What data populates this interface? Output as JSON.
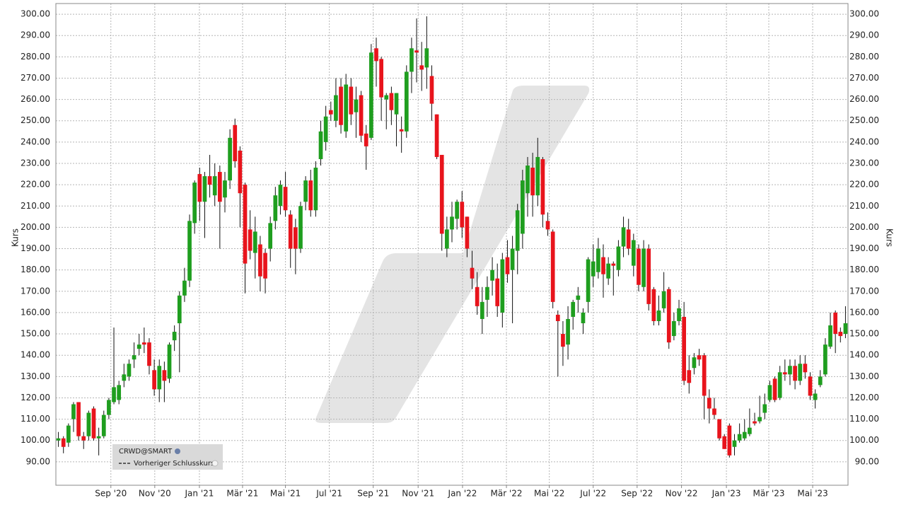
{
  "chart_data": {
    "type": "candlestick",
    "y_label": "Kurs",
    "ylim": [
      79,
      305
    ],
    "yticks": [
      {
        "value": 90,
        "label": "90.00"
      },
      {
        "value": 100,
        "label": "100.00"
      },
      {
        "value": 110,
        "label": "110.00"
      },
      {
        "value": 120,
        "label": "120.00"
      },
      {
        "value": 130,
        "label": "130.00"
      },
      {
        "value": 140,
        "label": "140.00"
      },
      {
        "value": 150,
        "label": "150.00"
      },
      {
        "value": 160,
        "label": "160.00"
      },
      {
        "value": 170,
        "label": "170.00"
      },
      {
        "value": 180,
        "label": "180.00"
      },
      {
        "value": 190,
        "label": "190.00"
      },
      {
        "value": 200,
        "label": "200.00"
      },
      {
        "value": 210,
        "label": "210.00"
      },
      {
        "value": 220,
        "label": "220.00"
      },
      {
        "value": 230,
        "label": "230.00"
      },
      {
        "value": 240,
        "label": "240.00"
      },
      {
        "value": 250,
        "label": "250.00"
      },
      {
        "value": 260,
        "label": "260.00"
      },
      {
        "value": 270,
        "label": "270.00"
      },
      {
        "value": 280,
        "label": "280.00"
      },
      {
        "value": 290,
        "label": "290.00"
      },
      {
        "value": 300,
        "label": "300.00"
      }
    ],
    "xlim": [
      -0.5,
      156.5
    ],
    "xticks": [
      {
        "value": 10.4,
        "label": "Sep '20"
      },
      {
        "value": 19.1,
        "label": "Nov '20"
      },
      {
        "value": 27.95,
        "label": "Jan '21"
      },
      {
        "value": 36.5,
        "label": "Mär '21"
      },
      {
        "value": 45.0,
        "label": "Mai '21"
      },
      {
        "value": 53.7,
        "label": "Jul '21"
      },
      {
        "value": 62.4,
        "label": "Sep '21"
      },
      {
        "value": 71.3,
        "label": "Nov '21"
      },
      {
        "value": 80.1,
        "label": "Jan '22"
      },
      {
        "value": 88.8,
        "label": "Mär '22"
      },
      {
        "value": 97.3,
        "label": "Mai '22"
      },
      {
        "value": 106.0,
        "label": "Jul '22"
      },
      {
        "value": 114.7,
        "label": "Sep '22"
      },
      {
        "value": 123.5,
        "label": "Nov '22"
      },
      {
        "value": 132.4,
        "label": "Jan '23"
      },
      {
        "value": 140.8,
        "label": "Mär '23"
      },
      {
        "value": 149.5,
        "label": "Mai '23"
      }
    ],
    "grid": true,
    "up_color": "#1f9e1f",
    "down_color": "#e8141c",
    "legend": [
      "CRWD@SMART",
      "Vorheriger Schlusskurs"
    ],
    "series": [
      {
        "name": "CRWD@SMART",
        "open": [
          100,
          101,
          99,
          110,
          118,
          102,
          102,
          115,
          101,
          102,
          112,
          118,
          119,
          128,
          130,
          138,
          143,
          146,
          146,
          133,
          124,
          133,
          129,
          147,
          155,
          168,
          175,
          202,
          225,
          212,
          224,
          215,
          226,
          214,
          222,
          248,
          236,
          220,
          199,
          188,
          192,
          188,
          190,
          203,
          210,
          219,
          206,
          200,
          190,
          212,
          222,
          208,
          232,
          240,
          255,
          250,
          266,
          245,
          266,
          254,
          262,
          244,
          242,
          284,
          279,
          260,
          263,
          253,
          246,
          245,
          273,
          283,
          276,
          275,
          271,
          253,
          234,
          190,
          199,
          204,
          212,
          205,
          181,
          172,
          157,
          166,
          175,
          176,
          160,
          186,
          180,
          189,
          197,
          216,
          228,
          215,
          232,
          203,
          198,
          159,
          150,
          145,
          158,
          166,
          155,
          165,
          177,
          179,
          186,
          176,
          183,
          180,
          191,
          199,
          182,
          190,
          172,
          190,
          171,
          156,
          162,
          171,
          149,
          156,
          158,
          133,
          134,
          140,
          140,
          120,
          115,
          110,
          102,
          107,
          97,
          100,
          101,
          103,
          109,
          109,
          113,
          119,
          129,
          120,
          132,
          131,
          135,
          128,
          136,
          130,
          119,
          126,
          131,
          144,
          160,
          151,
          150
        ],
        "high": [
          104,
          102,
          108,
          118,
          118,
          104,
          114,
          116,
          106,
          114,
          120,
          153,
          128,
          136,
          138,
          146,
          150,
          153,
          148,
          138,
          138,
          137,
          146,
          154,
          170,
          181,
          206,
          222,
          228,
          226,
          234,
          230,
          229,
          226,
          246,
          251,
          238,
          221,
          208,
          205,
          196,
          190,
          205,
          219,
          222,
          226,
          208,
          204,
          212,
          224,
          227,
          231,
          250,
          257,
          259,
          270,
          270,
          272,
          270,
          266,
          264,
          248,
          286,
          289,
          280,
          263,
          266,
          263,
          252,
          276,
          289,
          298,
          287,
          299,
          276,
          253,
          234,
          205,
          212,
          213,
          217,
          205,
          189,
          179,
          172,
          177,
          186,
          183,
          188,
          194,
          196,
          211,
          227,
          233,
          235,
          242,
          233,
          207,
          199,
          161,
          156,
          163,
          166,
          172,
          162,
          186,
          192,
          195,
          192,
          186,
          184,
          194,
          205,
          204,
          197,
          192,
          194,
          192,
          172,
          168,
          179,
          172,
          160,
          166,
          165,
          140,
          141,
          143,
          141,
          124,
          120,
          110,
          103,
          108,
          103,
          108,
          110,
          115,
          113,
          121,
          122,
          128,
          130,
          135,
          138,
          138,
          138,
          140,
          140,
          132,
          124,
          133,
          148,
          160,
          161,
          153,
          163
        ],
        "low": [
          97,
          94,
          97,
          104,
          100,
          96,
          100,
          100,
          93,
          101,
          110,
          117,
          117,
          125,
          128,
          134,
          140,
          141,
          131,
          121,
          118,
          118,
          127,
          142,
          132,
          165,
          172,
          197,
          203,
          195,
          214,
          210,
          190,
          207,
          218,
          228,
          200,
          169,
          185,
          176,
          170,
          169,
          184,
          199,
          206,
          205,
          181,
          178,
          188,
          208,
          205,
          205,
          229,
          236,
          250,
          247,
          244,
          242,
          248,
          242,
          240,
          227,
          241,
          266,
          250,
          246,
          248,
          238,
          235,
          242,
          263,
          268,
          264,
          265,
          250,
          232,
          189,
          186,
          193,
          199,
          195,
          186,
          171,
          159,
          150,
          158,
          168,
          158,
          153,
          174,
          155,
          178,
          190,
          205,
          205,
          210,
          200,
          196,
          162,
          130,
          135,
          138,
          152,
          160,
          150,
          160,
          172,
          176,
          167,
          173,
          168,
          177,
          186,
          187,
          177,
          170,
          170,
          161,
          154,
          154,
          160,
          143,
          147,
          154,
          126,
          122,
          131,
          135,
          110,
          108,
          110,
          100,
          96,
          92,
          93,
          99,
          100,
          102,
          107,
          108,
          110,
          118,
          118,
          119,
          128,
          126,
          124,
          126,
          129,
          119,
          115,
          125,
          130,
          143,
          141,
          146,
          148
        ],
        "close": [
          101,
          97,
          107,
          117,
          102,
          100,
          113,
          101,
          102,
          112,
          119,
          125,
          126,
          131,
          136,
          140,
          145,
          145,
          135,
          124,
          135,
          128,
          145,
          151,
          168,
          175,
          203,
          221,
          212,
          224,
          220,
          224,
          212,
          222,
          242,
          231,
          216,
          183,
          189,
          198,
          177,
          176,
          202,
          215,
          220,
          208,
          190,
          190,
          210,
          222,
          208,
          228,
          245,
          252,
          253,
          262,
          248,
          267,
          253,
          260,
          243,
          238,
          282,
          278,
          261,
          262,
          255,
          263,
          245,
          273,
          284,
          282,
          274,
          284,
          258,
          233,
          197,
          199,
          205,
          212,
          200,
          190,
          176,
          163,
          165,
          172,
          180,
          163,
          185,
          178,
          190,
          208,
          222,
          229,
          215,
          233,
          206,
          199,
          165,
          156,
          144,
          157,
          165,
          168,
          160,
          185,
          184,
          190,
          178,
          183,
          182,
          191,
          200,
          190,
          194,
          173,
          190,
          164,
          156,
          161,
          170,
          146,
          156,
          162,
          128,
          127,
          139,
          138,
          121,
          115,
          112,
          101,
          96,
          93,
          100,
          103,
          104,
          106,
          108,
          111,
          117,
          126,
          119,
          132,
          131,
          135,
          128,
          136,
          132,
          121,
          122,
          130,
          145,
          154,
          150,
          149,
          155
        ]
      }
    ]
  }
}
